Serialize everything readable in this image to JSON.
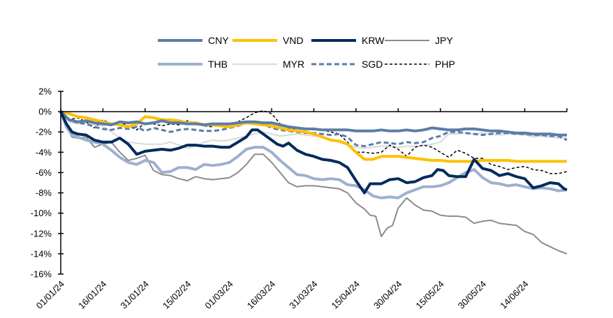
{
  "chart_data": {
    "type": "line",
    "title": "",
    "xlabel": "",
    "ylabel": "",
    "ylim": [
      -0.16,
      0.02
    ],
    "yticks": [
      0.02,
      0,
      -0.02,
      -0.04,
      -0.06,
      -0.08,
      -0.1,
      -0.12,
      -0.14,
      -0.16
    ],
    "ytick_labels": [
      "2%",
      "0%",
      "-2%",
      "-4%",
      "-6%",
      "-8%",
      "-10%",
      "-12%",
      "-14%",
      "-16%"
    ],
    "x_days_range": [
      0,
      180
    ],
    "xtick_days": [
      0,
      15,
      30,
      45,
      60,
      75,
      90,
      105,
      120,
      135,
      150,
      165
    ],
    "xtick_labels": [
      "01/01/24",
      "16/01/24",
      "31/01/24",
      "15/02/24",
      "01/03/24",
      "16/03/24",
      "31/03/24",
      "15/04/24",
      "30/04/24",
      "15/05/24",
      "30/05/24",
      "14/06/24"
    ],
    "grid": false,
    "legend_position": "top",
    "series": [
      {
        "name": "CNY",
        "color": "#5B7DA8",
        "style": "solid",
        "width": 4,
        "x": [
          0,
          3,
          6,
          9,
          12,
          15,
          18,
          21,
          24,
          27,
          30,
          33,
          36,
          39,
          42,
          45,
          48,
          51,
          54,
          57,
          60,
          63,
          66,
          69,
          72,
          75,
          78,
          81,
          84,
          87,
          90,
          93,
          96,
          99,
          102,
          105,
          108,
          111,
          114,
          117,
          120,
          123,
          126,
          129,
          132,
          135,
          138,
          141,
          144,
          147,
          150,
          153,
          156,
          159,
          162,
          165,
          168,
          171,
          174,
          177,
          180
        ],
        "values": [
          0,
          -0.008,
          -0.01,
          -0.009,
          -0.011,
          -0.012,
          -0.013,
          -0.01,
          -0.011,
          -0.01,
          -0.012,
          -0.011,
          -0.009,
          -0.011,
          -0.011,
          -0.012,
          -0.012,
          -0.013,
          -0.012,
          -0.012,
          -0.012,
          -0.011,
          -0.01,
          -0.01,
          -0.011,
          -0.011,
          -0.013,
          -0.015,
          -0.016,
          -0.017,
          -0.017,
          -0.018,
          -0.018,
          -0.018,
          -0.018,
          -0.019,
          -0.019,
          -0.019,
          -0.018,
          -0.019,
          -0.019,
          -0.018,
          -0.019,
          -0.018,
          -0.016,
          -0.017,
          -0.018,
          -0.018,
          -0.017,
          -0.017,
          -0.018,
          -0.019,
          -0.019,
          -0.02,
          -0.021,
          -0.021,
          -0.022,
          -0.022,
          -0.022,
          -0.023,
          -0.023
        ]
      },
      {
        "name": "VND",
        "color": "#FFC000",
        "style": "solid",
        "width": 4,
        "x": [
          0,
          3,
          6,
          9,
          12,
          15,
          18,
          21,
          24,
          27,
          30,
          33,
          36,
          39,
          42,
          45,
          48,
          51,
          54,
          57,
          60,
          63,
          66,
          69,
          72,
          75,
          78,
          81,
          84,
          87,
          90,
          93,
          96,
          99,
          102,
          105,
          108,
          111,
          114,
          117,
          120,
          123,
          126,
          129,
          132,
          135,
          138,
          141,
          144,
          147,
          150,
          153,
          156,
          159,
          162,
          165,
          168,
          171,
          174,
          177,
          180
        ],
        "values": [
          0,
          -0.002,
          -0.005,
          -0.006,
          -0.008,
          -0.01,
          -0.012,
          -0.013,
          -0.015,
          -0.012,
          -0.005,
          -0.006,
          -0.008,
          -0.008,
          -0.009,
          -0.011,
          -0.011,
          -0.013,
          -0.013,
          -0.014,
          -0.015,
          -0.013,
          -0.011,
          -0.012,
          -0.013,
          -0.014,
          -0.016,
          -0.018,
          -0.019,
          -0.02,
          -0.022,
          -0.025,
          -0.028,
          -0.029,
          -0.032,
          -0.04,
          -0.047,
          -0.047,
          -0.044,
          -0.044,
          -0.044,
          -0.045,
          -0.046,
          -0.047,
          -0.048,
          -0.048,
          -0.049,
          -0.049,
          -0.049,
          -0.049,
          -0.048,
          -0.048,
          -0.048,
          -0.048,
          -0.049,
          -0.049,
          -0.049,
          -0.049,
          -0.049,
          -0.049,
          -0.049
        ]
      },
      {
        "name": "KRW",
        "color": "#002B5C",
        "style": "solid",
        "width": 4,
        "x": [
          0,
          2,
          4,
          6,
          9,
          12,
          15,
          18,
          21,
          24,
          27,
          30,
          33,
          36,
          39,
          42,
          45,
          48,
          51,
          54,
          57,
          60,
          63,
          66,
          68,
          70,
          72,
          75,
          77,
          79,
          81,
          84,
          87,
          90,
          93,
          96,
          99,
          102,
          105,
          106,
          108,
          110,
          114,
          117,
          120,
          123,
          126,
          129,
          132,
          134,
          136,
          138,
          141,
          144,
          147,
          150,
          153,
          156,
          159,
          162,
          165,
          168,
          171,
          174,
          177,
          179,
          180
        ],
        "values": [
          0,
          -0.012,
          -0.02,
          -0.022,
          -0.023,
          -0.028,
          -0.03,
          -0.03,
          -0.026,
          -0.032,
          -0.042,
          -0.039,
          -0.038,
          -0.037,
          -0.038,
          -0.036,
          -0.033,
          -0.033,
          -0.034,
          -0.034,
          -0.035,
          -0.035,
          -0.03,
          -0.025,
          -0.018,
          -0.018,
          -0.022,
          -0.028,
          -0.032,
          -0.034,
          -0.031,
          -0.038,
          -0.042,
          -0.044,
          -0.047,
          -0.048,
          -0.05,
          -0.055,
          -0.068,
          -0.072,
          -0.08,
          -0.071,
          -0.071,
          -0.067,
          -0.066,
          -0.07,
          -0.069,
          -0.065,
          -0.063,
          -0.057,
          -0.058,
          -0.063,
          -0.064,
          -0.064,
          -0.047,
          -0.056,
          -0.058,
          -0.063,
          -0.061,
          -0.064,
          -0.066,
          -0.075,
          -0.073,
          -0.07,
          -0.071,
          -0.076,
          -0.077
        ]
      },
      {
        "name": "JPY",
        "color": "#8C8C8C",
        "style": "solid",
        "width": 2,
        "x": [
          0,
          2,
          4,
          6,
          9,
          12,
          15,
          18,
          21,
          24,
          27,
          30,
          33,
          36,
          39,
          42,
          45,
          48,
          51,
          54,
          57,
          60,
          63,
          66,
          69,
          72,
          75,
          78,
          81,
          84,
          87,
          90,
          93,
          96,
          99,
          102,
          105,
          108,
          110,
          112,
          114,
          116,
          118,
          120,
          123,
          126,
          129,
          132,
          135,
          138,
          141,
          144,
          147,
          150,
          153,
          156,
          159,
          162,
          165,
          168,
          171,
          174,
          177,
          180
        ],
        "values": [
          0,
          -0.015,
          -0.025,
          -0.026,
          -0.025,
          -0.035,
          -0.032,
          -0.03,
          -0.04,
          -0.048,
          -0.046,
          -0.043,
          -0.058,
          -0.062,
          -0.063,
          -0.066,
          -0.068,
          -0.064,
          -0.066,
          -0.067,
          -0.066,
          -0.065,
          -0.06,
          -0.052,
          -0.042,
          -0.042,
          -0.05,
          -0.06,
          -0.07,
          -0.074,
          -0.073,
          -0.073,
          -0.074,
          -0.075,
          -0.076,
          -0.08,
          -0.09,
          -0.096,
          -0.102,
          -0.103,
          -0.123,
          -0.115,
          -0.112,
          -0.095,
          -0.085,
          -0.092,
          -0.097,
          -0.098,
          -0.102,
          -0.103,
          -0.103,
          -0.104,
          -0.11,
          -0.108,
          -0.107,
          -0.11,
          -0.111,
          -0.112,
          -0.118,
          -0.121,
          -0.129,
          -0.133,
          -0.137,
          -0.14
        ]
      },
      {
        "name": "THB",
        "color": "#9DB0CF",
        "style": "solid",
        "width": 4,
        "x": [
          0,
          2,
          4,
          6,
          9,
          12,
          15,
          18,
          21,
          24,
          27,
          30,
          33,
          36,
          39,
          42,
          45,
          48,
          51,
          54,
          57,
          60,
          63,
          66,
          69,
          72,
          75,
          78,
          81,
          84,
          87,
          90,
          93,
          96,
          99,
          102,
          105,
          108,
          111,
          114,
          117,
          120,
          123,
          126,
          129,
          132,
          135,
          138,
          141,
          144,
          147,
          150,
          153,
          156,
          159,
          162,
          165,
          168,
          171,
          174,
          177,
          180
        ],
        "values": [
          0,
          -0.015,
          -0.023,
          -0.025,
          -0.028,
          -0.03,
          -0.032,
          -0.038,
          -0.045,
          -0.05,
          -0.052,
          -0.048,
          -0.05,
          -0.06,
          -0.059,
          -0.055,
          -0.055,
          -0.057,
          -0.052,
          -0.053,
          -0.052,
          -0.05,
          -0.044,
          -0.037,
          -0.035,
          -0.035,
          -0.04,
          -0.048,
          -0.055,
          -0.062,
          -0.063,
          -0.066,
          -0.067,
          -0.066,
          -0.067,
          -0.072,
          -0.073,
          -0.077,
          -0.083,
          -0.085,
          -0.084,
          -0.085,
          -0.08,
          -0.077,
          -0.074,
          -0.074,
          -0.073,
          -0.07,
          -0.065,
          -0.06,
          -0.057,
          -0.065,
          -0.07,
          -0.071,
          -0.073,
          -0.072,
          -0.074,
          -0.076,
          -0.075,
          -0.076,
          -0.078,
          -0.077
        ]
      },
      {
        "name": "MYR",
        "color": "#D9D9D9",
        "style": "solid",
        "width": 2,
        "x": [
          0,
          3,
          6,
          9,
          12,
          15,
          18,
          21,
          24,
          27,
          30,
          33,
          36,
          39,
          42,
          45,
          48,
          51,
          54,
          57,
          60,
          63,
          66,
          69,
          72,
          75,
          78,
          81,
          84,
          87,
          90,
          93,
          96,
          99,
          102,
          105,
          108,
          111,
          114,
          117,
          120,
          123,
          126,
          129,
          132,
          135,
          138,
          141,
          144,
          147,
          150,
          153,
          156,
          159,
          162,
          165,
          168,
          171,
          174,
          177,
          180
        ],
        "values": [
          0,
          -0.01,
          -0.012,
          -0.011,
          -0.013,
          -0.014,
          -0.02,
          -0.026,
          -0.03,
          -0.031,
          -0.032,
          -0.032,
          -0.032,
          -0.03,
          -0.033,
          -0.036,
          -0.034,
          -0.03,
          -0.028,
          -0.029,
          -0.028,
          -0.026,
          -0.024,
          -0.022,
          -0.02,
          -0.022,
          -0.024,
          -0.023,
          -0.022,
          -0.023,
          -0.024,
          -0.025,
          -0.027,
          -0.03,
          -0.033,
          -0.035,
          -0.036,
          -0.035,
          -0.034,
          -0.034,
          -0.035,
          -0.034,
          -0.034,
          -0.033,
          -0.032,
          -0.03,
          -0.022,
          -0.022,
          -0.021,
          -0.022,
          -0.021,
          -0.022,
          -0.023,
          -0.022,
          -0.022,
          -0.023,
          -0.025,
          -0.024,
          -0.025,
          -0.026,
          -0.026
        ]
      },
      {
        "name": "SGD",
        "color": "#5B7DA8",
        "style": "dashed",
        "width": 3,
        "x": [
          0,
          3,
          6,
          9,
          12,
          15,
          18,
          21,
          24,
          27,
          30,
          33,
          36,
          39,
          42,
          45,
          48,
          51,
          54,
          57,
          60,
          63,
          66,
          69,
          72,
          75,
          78,
          81,
          84,
          87,
          90,
          93,
          96,
          99,
          102,
          105,
          108,
          111,
          114,
          117,
          120,
          123,
          126,
          129,
          132,
          135,
          138,
          141,
          144,
          147,
          150,
          153,
          156,
          159,
          162,
          165,
          168,
          171,
          174,
          177,
          180
        ],
        "values": [
          0,
          -0.008,
          -0.011,
          -0.012,
          -0.015,
          -0.017,
          -0.018,
          -0.016,
          -0.017,
          -0.015,
          -0.019,
          -0.016,
          -0.018,
          -0.02,
          -0.018,
          -0.017,
          -0.018,
          -0.019,
          -0.019,
          -0.018,
          -0.016,
          -0.014,
          -0.011,
          -0.01,
          -0.012,
          -0.016,
          -0.018,
          -0.019,
          -0.02,
          -0.021,
          -0.021,
          -0.022,
          -0.023,
          -0.022,
          -0.025,
          -0.033,
          -0.034,
          -0.032,
          -0.03,
          -0.031,
          -0.032,
          -0.03,
          -0.031,
          -0.03,
          -0.026,
          -0.024,
          -0.02,
          -0.02,
          -0.021,
          -0.022,
          -0.023,
          -0.022,
          -0.021,
          -0.021,
          -0.022,
          -0.022,
          -0.023,
          -0.023,
          -0.024,
          -0.024,
          -0.028
        ]
      },
      {
        "name": "PHP",
        "color": "#000000",
        "style": "dashed",
        "width": 1.5,
        "x": [
          0,
          3,
          6,
          9,
          12,
          15,
          18,
          21,
          24,
          27,
          30,
          33,
          36,
          39,
          42,
          45,
          48,
          51,
          54,
          57,
          60,
          63,
          66,
          69,
          72,
          75,
          78,
          81,
          84,
          87,
          90,
          93,
          96,
          99,
          102,
          105,
          108,
          111,
          114,
          117,
          120,
          123,
          126,
          129,
          132,
          135,
          138,
          141,
          144,
          147,
          150,
          153,
          156,
          159,
          162,
          165,
          168,
          171,
          174,
          177,
          180
        ],
        "values": [
          0,
          -0.008,
          -0.006,
          -0.01,
          -0.016,
          -0.008,
          -0.012,
          -0.01,
          -0.014,
          -0.018,
          -0.011,
          -0.012,
          -0.014,
          -0.012,
          -0.013,
          -0.009,
          -0.012,
          -0.014,
          -0.015,
          -0.012,
          -0.012,
          -0.01,
          -0.006,
          -0.001,
          0.001,
          -0.002,
          -0.012,
          -0.016,
          -0.017,
          -0.016,
          -0.018,
          -0.018,
          -0.02,
          -0.022,
          -0.03,
          -0.04,
          -0.04,
          -0.041,
          -0.04,
          -0.033,
          -0.037,
          -0.044,
          -0.035,
          -0.033,
          -0.035,
          -0.04,
          -0.045,
          -0.038,
          -0.041,
          -0.046,
          -0.046,
          -0.052,
          -0.054,
          -0.057,
          -0.055,
          -0.054,
          -0.057,
          -0.058,
          -0.061,
          -0.061,
          -0.059
        ]
      }
    ]
  }
}
